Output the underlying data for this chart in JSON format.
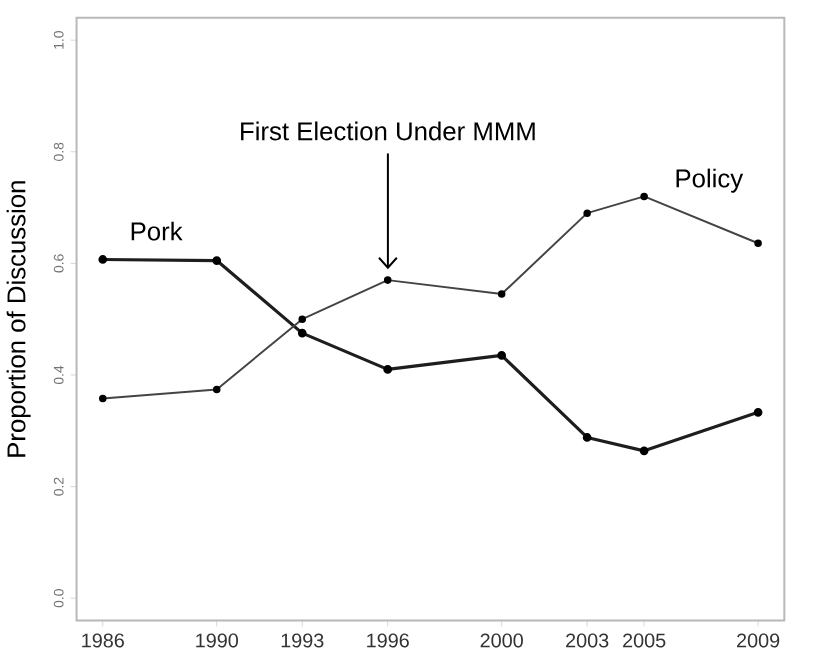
{
  "chart_data": {
    "type": "line",
    "ylabel": "Proportion of Discussion",
    "x": [
      1986,
      1990,
      1993,
      1996,
      2000,
      2003,
      2005,
      2009
    ],
    "series": [
      {
        "name": "Pork",
        "color": "#1e1e1e",
        "values": [
          0.607,
          0.605,
          0.475,
          0.41,
          0.435,
          0.288,
          0.264,
          0.333
        ]
      },
      {
        "name": "Policy",
        "color": "#444444",
        "values": [
          0.358,
          0.374,
          0.5,
          0.57,
          0.545,
          0.69,
          0.72,
          0.636
        ]
      }
    ],
    "xlim": [
      1985.08,
      2009.92
    ],
    "ylim": [
      -0.04,
      1.04
    ],
    "xticks": [
      1986,
      1990,
      1993,
      1996,
      2000,
      2003,
      2005,
      2009
    ],
    "yticks": [
      {
        "value": 0,
        "label": "0.0"
      },
      {
        "value": 0.2,
        "label": "0.2"
      },
      {
        "value": 0.4,
        "label": "0.4"
      },
      {
        "value": 0.6,
        "label": "0.6"
      },
      {
        "value": 0.8,
        "label": "0.8"
      },
      {
        "value": 1,
        "label": "1.0"
      }
    ],
    "annotations": [
      "First Election Under MMM"
    ],
    "marker": "circle",
    "line_style": "solid",
    "grid": false
  }
}
